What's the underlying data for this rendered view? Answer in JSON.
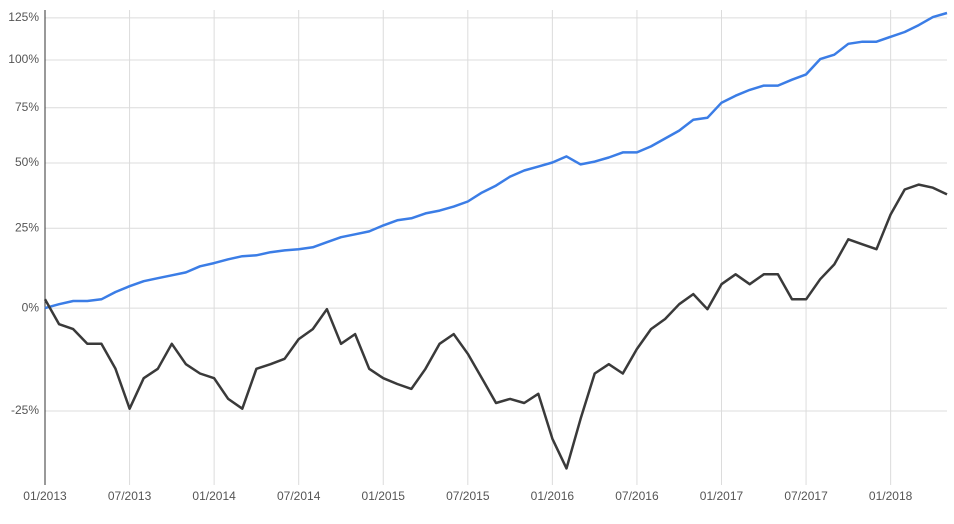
{
  "chart_data": {
    "type": "line",
    "yscale": "log-return",
    "x": [
      "2013-01",
      "2013-02",
      "2013-03",
      "2013-04",
      "2013-05",
      "2013-06",
      "2013-07",
      "2013-08",
      "2013-09",
      "2013-10",
      "2013-11",
      "2013-12",
      "2014-01",
      "2014-02",
      "2014-03",
      "2014-04",
      "2014-05",
      "2014-06",
      "2014-07",
      "2014-08",
      "2014-09",
      "2014-10",
      "2014-11",
      "2014-12",
      "2015-01",
      "2015-02",
      "2015-03",
      "2015-04",
      "2015-05",
      "2015-06",
      "2015-07",
      "2015-08",
      "2015-09",
      "2015-10",
      "2015-11",
      "2015-12",
      "2016-01",
      "2016-02",
      "2016-03",
      "2016-04",
      "2016-05",
      "2016-06",
      "2016-07",
      "2016-08",
      "2016-09",
      "2016-10",
      "2016-11",
      "2016-12",
      "2017-01",
      "2017-02",
      "2017-03",
      "2017-04",
      "2017-05",
      "2017-06",
      "2017-07",
      "2017-08",
      "2017-09",
      "2017-10",
      "2017-11",
      "2017-12",
      "2018-01",
      "2018-02",
      "2018-03",
      "2018-04",
      "2018-05"
    ],
    "series": [
      {
        "color": "#3b7de6",
        "values": [
          0,
          1.1,
          2,
          2,
          2.5,
          4.6,
          6.3,
          7.8,
          8.7,
          9.6,
          10.5,
          12.4,
          13.4,
          14.6,
          15.6,
          15.9,
          16.9,
          17.5,
          17.9,
          18.5,
          20.2,
          21.9,
          22.9,
          23.9,
          26.0,
          27.8,
          28.5,
          30.3,
          31.3,
          32.8,
          34.7,
          38.1,
          40.8,
          44.4,
          46.9,
          48.5,
          50.2,
          52.8,
          49.4,
          50.6,
          52.3,
          54.5,
          54.5,
          57.1,
          60.6,
          64.2,
          69.3,
          70.2,
          77.5,
          81.0,
          84.0,
          86.2,
          86.2,
          89.3,
          92.1,
          100.5,
          103.0,
          109.3,
          110.5,
          110.5,
          113.4,
          116.3,
          120.5,
          125.5,
          128.1
        ]
      },
      {
        "color": "#3a3a3a",
        "values": [
          2.5,
          -4.4,
          -5.7,
          -9.5,
          -9.5,
          -15.6,
          -24.5,
          -17.8,
          -15.6,
          -9.5,
          -14.5,
          -16.7,
          -17.8,
          -22.4,
          -24.5,
          -15.6,
          -14.5,
          -13.2,
          -8.3,
          -5.7,
          -0.3,
          -9.5,
          -7.0,
          -15.6,
          -17.8,
          -19.1,
          -20.2,
          -15.6,
          -9.5,
          -7.0,
          -12.0,
          -17.8,
          -23.3,
          -22.4,
          -23.3,
          -21.3,
          -30.6,
          -36.1,
          -26.6,
          -16.7,
          -14.5,
          -16.7,
          -10.8,
          -5.7,
          -3.0,
          1.1,
          4.0,
          -0.3,
          6.9,
          9.9,
          6.9,
          9.9,
          9.9,
          2.5,
          2.5,
          8.4,
          13.0,
          21.2,
          19.5,
          17.9,
          29.9,
          39.3,
          41.2,
          40.0,
          37.4
        ]
      }
    ],
    "xlim": [
      "2013-01",
      "2018-05"
    ],
    "xticks": [
      {
        "value": "2013-01",
        "label": "01/2013"
      },
      {
        "value": "2013-07",
        "label": "07/2013"
      },
      {
        "value": "2014-01",
        "label": "01/2014"
      },
      {
        "value": "2014-07",
        "label": "07/2014"
      },
      {
        "value": "2015-01",
        "label": "01/2015"
      },
      {
        "value": "2015-07",
        "label": "07/2015"
      },
      {
        "value": "2016-01",
        "label": "01/2016"
      },
      {
        "value": "2016-07",
        "label": "07/2016"
      },
      {
        "value": "2017-01",
        "label": "01/2017"
      },
      {
        "value": "2017-07",
        "label": "07/2017"
      },
      {
        "value": "2018-01",
        "label": "01/2018"
      }
    ],
    "ylim": [
      -39,
      130
    ],
    "yticks": [
      {
        "value": -25,
        "label": "-25%"
      },
      {
        "value": 0,
        "label": "0%"
      },
      {
        "value": 25,
        "label": "25%"
      },
      {
        "value": 50,
        "label": "50%"
      },
      {
        "value": 75,
        "label": "75%"
      },
      {
        "value": 100,
        "label": "100%"
      },
      {
        "value": 125,
        "label": "125%"
      }
    ],
    "grid": true
  }
}
